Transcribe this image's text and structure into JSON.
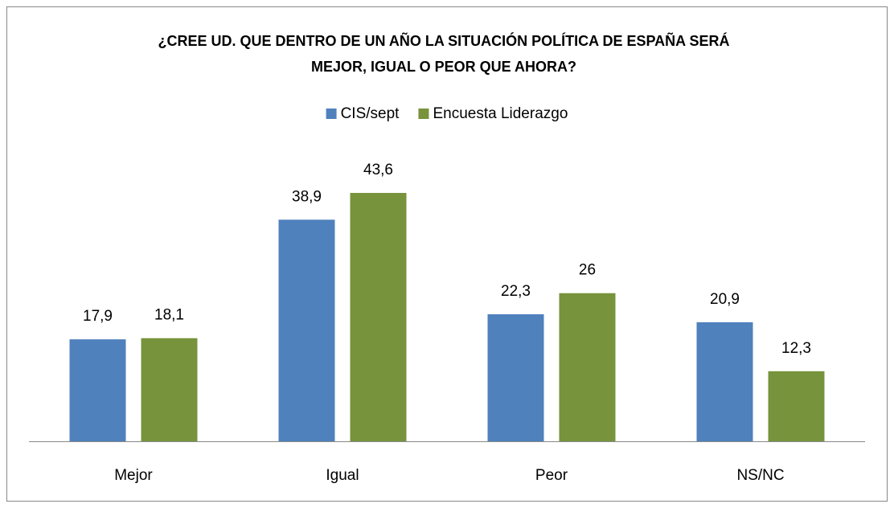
{
  "chart_data": {
    "type": "bar",
    "title": [
      "¿CREE UD. QUE DENTRO DE UN AÑO LA SITUACIÓN POLÍTICA DE ESPAÑA SERÁ",
      "MEJOR, IGUAL O PEOR QUE AHORA?"
    ],
    "categories": [
      "Mejor",
      "Igual",
      "Peor",
      "NS/NC"
    ],
    "series": [
      {
        "name": "CIS/sept",
        "color": "#4f81bd",
        "values": [
          17.9,
          38.9,
          22.3,
          20.9
        ],
        "value_labels": [
          "17,9",
          "38,9",
          "22,3",
          "20,9"
        ]
      },
      {
        "name": "Encuesta Liderazgo",
        "color": "#77933c",
        "values": [
          18.1,
          43.6,
          26,
          12.3
        ],
        "value_labels": [
          "18,1",
          "43,6",
          "26",
          "12,3"
        ]
      }
    ],
    "legend": "top"
  }
}
